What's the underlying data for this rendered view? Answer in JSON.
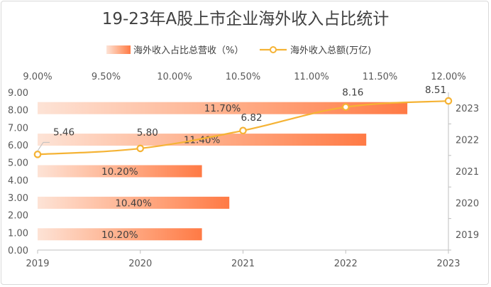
{
  "chart_data": {
    "type": "bar+line",
    "title": "19-23年A股上市企业海外收入占比统计",
    "categories": [
      "2019",
      "2020",
      "2021",
      "2022",
      "2023"
    ],
    "series": [
      {
        "name": "海外收入占比总营收（%）",
        "type": "bar",
        "orientation": "horizontal",
        "axis": "top",
        "values": [
          10.2,
          10.4,
          10.2,
          11.4,
          11.7
        ],
        "labels": [
          "10.20%",
          "10.40%",
          "10.20%",
          "11.40%",
          "11.70%"
        ]
      },
      {
        "name": "海外收入总额(万亿)",
        "type": "line",
        "axis": "left",
        "values": [
          5.46,
          5.8,
          6.82,
          8.16,
          8.51
        ],
        "labels": [
          "5.46",
          "5.80",
          "6.82",
          "8.16",
          "8.51"
        ]
      }
    ],
    "top_axis": {
      "range": [
        9.0,
        12.0
      ],
      "ticks": [
        "9.00%",
        "9.50%",
        "10.00%",
        "10.50%",
        "11.00%",
        "11.50%",
        "12.00%"
      ]
    },
    "left_axis": {
      "range": [
        0,
        9
      ],
      "ticks": [
        "0.00",
        "1.00",
        "2.00",
        "3.00",
        "4.00",
        "5.00",
        "6.00",
        "7.00",
        "8.00",
        "9.00"
      ]
    },
    "bottom_axis": {
      "ticks": [
        "2019",
        "2020",
        "2021",
        "2022",
        "2023"
      ]
    },
    "right_axis": {
      "ticks": [
        "2019",
        "2020",
        "2021",
        "2022",
        "2023"
      ]
    },
    "colors": {
      "bar_start": "#fde3d6",
      "bar_end": "#ff7a45",
      "line": "#f5b335",
      "axis": "#bfbfbf",
      "text": "#404040"
    },
    "legend_position": "top"
  }
}
